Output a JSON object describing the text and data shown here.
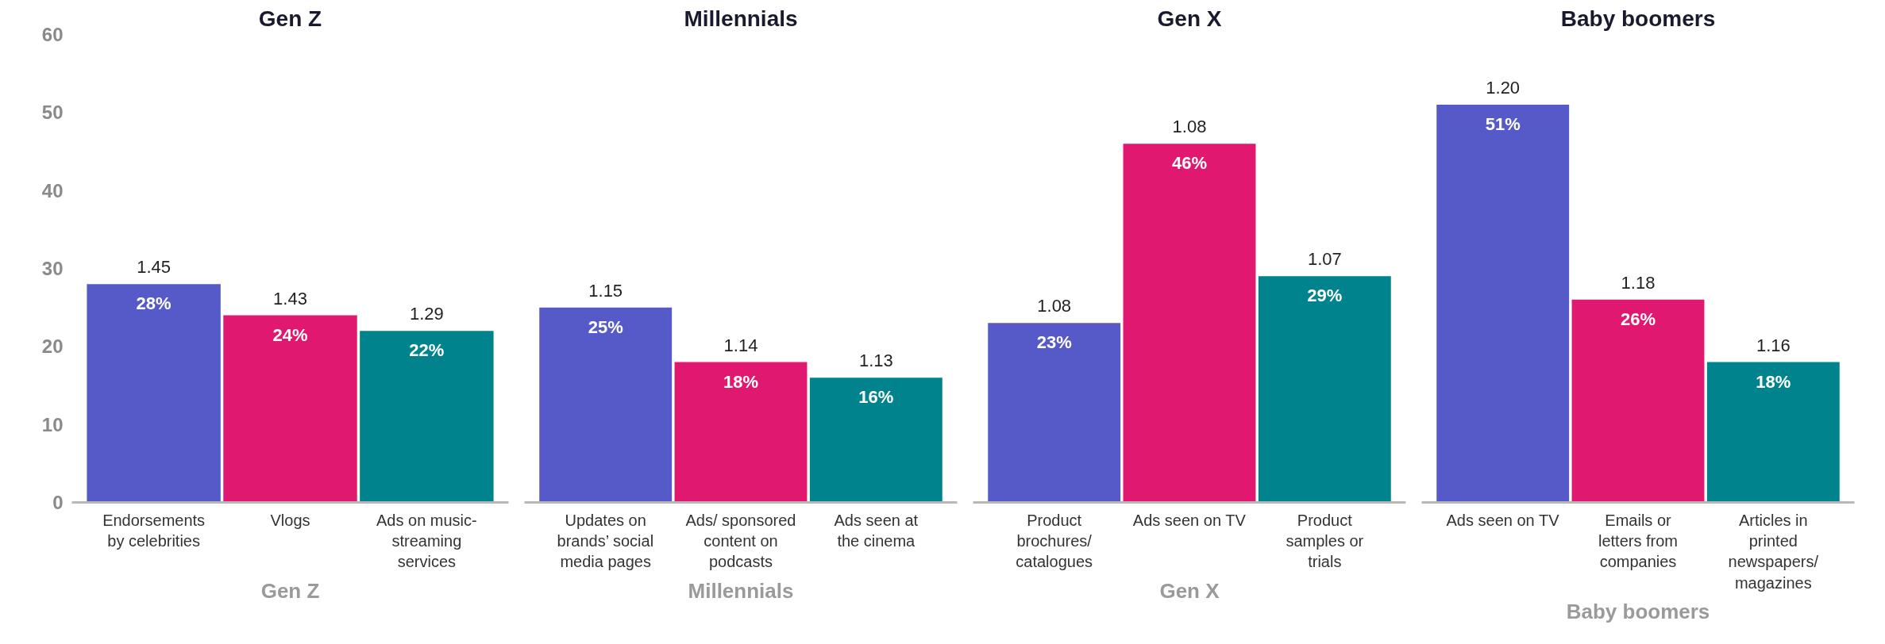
{
  "chart_data": [
    {
      "type": "bar",
      "title": "Gen Z",
      "categories": [
        "Endorsements by celebrities",
        "Vlogs",
        "Ads on music-streaming services"
      ],
      "values": [
        28,
        24,
        22
      ],
      "colors": [
        "#565ac8",
        "#e0186f",
        "#00838c"
      ],
      "value_labels": [
        "28%",
        "24%",
        "22%"
      ],
      "ylim": [
        0,
        60
      ],
      "yticks": [
        0,
        10,
        20,
        30,
        40,
        50,
        60
      ],
      "grid": false,
      "annotations": [
        {
          "text": "1.45",
          "x": "Endorsements by celebrities",
          "y": 28
        },
        {
          "text": "1.43",
          "x": "Vlogs",
          "y": 24
        },
        {
          "text": "1.29",
          "x": "Ads on music-streaming services",
          "y": 22
        },
        "Gen Z"
      ]
    },
    {
      "type": "bar",
      "title": "Millennials",
      "categories": [
        "Updates on brands’ social media pages",
        "Ads/ sponsored content on podcasts",
        "Ads seen at the cinema"
      ],
      "values": [
        25,
        18,
        16
      ],
      "colors": [
        "#565ac8",
        "#e0186f",
        "#00838c"
      ],
      "value_labels": [
        "25%",
        "18%",
        "16%"
      ],
      "ylim": [
        0,
        60
      ],
      "grid": false,
      "tick_labels": "x",
      "annotations": [
        {
          "text": "1.15",
          "x": "Updates on brands’ social media pages",
          "y": 25
        },
        {
          "text": "1.14",
          "x": "Ads/ sponsored content on podcasts",
          "y": 18
        },
        {
          "text": "1.13",
          "x": "Ads seen at the cinema",
          "y": 16
        },
        "Millennials"
      ]
    },
    {
      "type": "bar",
      "title": "Gen X",
      "categories": [
        "Product brochures/ catalogues",
        "Ads seen on TV",
        "Product samples or trials"
      ],
      "values": [
        23,
        46,
        29
      ],
      "colors": [
        "#565ac8",
        "#e0186f",
        "#00838c"
      ],
      "value_labels": [
        "23%",
        "46%",
        "29%"
      ],
      "ylim": [
        0,
        60
      ],
      "grid": false,
      "tick_labels": "x",
      "annotations": [
        {
          "text": "1.08",
          "x": "Product brochures/ catalogues",
          "y": 23
        },
        {
          "text": "1.08",
          "x": "Ads seen on TV",
          "y": 46
        },
        {
          "text": "1.07",
          "x": "Product samples or trials",
          "y": 29
        },
        "Gen X"
      ]
    },
    {
      "type": "bar",
      "title": "Baby boomers",
      "categories": [
        "Ads seen on TV",
        "Emails or letters from companies",
        "Articles in printed newspapers/ magazines"
      ],
      "values": [
        51,
        26,
        18
      ],
      "colors": [
        "#565ac8",
        "#e0186f",
        "#00838c"
      ],
      "value_labels": [
        "51%",
        "26%",
        "18%"
      ],
      "ylim": [
        0,
        60
      ],
      "grid": false,
      "tick_labels": "x",
      "annotations": [
        {
          "text": "1.20",
          "x": "Ads seen on TV",
          "y": 51
        },
        {
          "text": "1.18",
          "x": "Emails or letters from companies",
          "y": 26
        },
        {
          "text": "1.16",
          "x": "Articles in printed newspapers/ magazines",
          "y": 18
        },
        "Baby boomers"
      ]
    }
  ]
}
